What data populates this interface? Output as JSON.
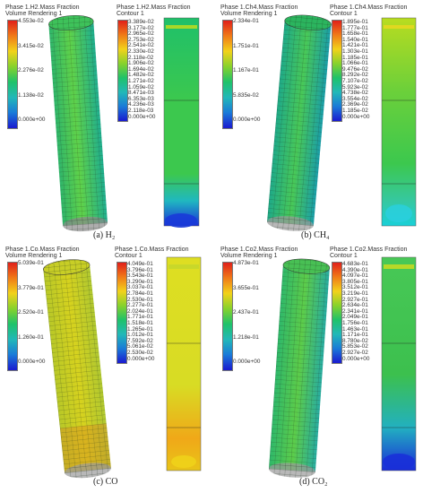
{
  "panels": [
    {
      "id": "h2",
      "vr_title": "Phase 1.H2.Mass Fraction",
      "vr_sub": "Volume Rendering 1",
      "vr_ticks": [
        "4.553e-02",
        "3.415e-02",
        "2.276e-02",
        "1.138e-02",
        "0.000e+00"
      ],
      "ct_title": "Phase 1.H2.Mass Fraction",
      "ct_sub": "Contour 1",
      "ct_ticks": [
        "3.389e-02",
        "3.177e-02",
        "2.965e-02",
        "2.753e-02",
        "2.541e-02",
        "2.330e-02",
        "2.118e-02",
        "1.906e-02",
        "1.694e-02",
        "1.482e-02",
        "1.271e-02",
        "1.059e-02",
        "8.471e-03",
        "6.353e-03",
        "4.236e-03",
        "2.118e-03",
        "0.000e+00"
      ],
      "caption": "(a) H₂"
    },
    {
      "id": "ch4",
      "vr_title": "Phase 1.Ch4.Mass Fraction",
      "vr_sub": "Volume Rendering 1",
      "vr_ticks": [
        "2.334e-01",
        "1.751e-01",
        "1.167e-01",
        "5.835e-02",
        "0.000e+00"
      ],
      "ct_title": "Phase 1.Ch4.Mass Fraction",
      "ct_sub": "Contour 1",
      "ct_ticks": [
        "1.895e-01",
        "1.777e-01",
        "1.658e-01",
        "1.540e-01",
        "1.421e-01",
        "1.303e-01",
        "1.185e-01",
        "1.066e-01",
        "9.476e-02",
        "8.292e-02",
        "7.107e-02",
        "5.923e-02",
        "4.738e-02",
        "3.554e-02",
        "2.369e-02",
        "1.185e-02",
        "0.000e+00"
      ],
      "caption": "(b) CH₄"
    },
    {
      "id": "co",
      "vr_title": "Phase 1.Co.Mass Fraction",
      "vr_sub": "Volume Rendering 1",
      "vr_ticks": [
        "5.039e-01",
        "3.779e-01",
        "2.520e-01",
        "1.260e-01",
        "0.000e+00"
      ],
      "ct_title": "Phase 1.Co.Mass Fraction",
      "ct_sub": "Contour 1",
      "ct_ticks": [
        "4.049e-01",
        "3.796e-01",
        "3.543e-01",
        "3.290e-01",
        "3.037e-01",
        "2.784e-01",
        "2.530e-01",
        "2.277e-01",
        "2.024e-01",
        "1.771e-01",
        "1.518e-01",
        "1.265e-01",
        "1.012e-01",
        "7.592e-02",
        "5.061e-02",
        "2.530e-02",
        "0.000e+00"
      ],
      "caption": "(c) CO"
    },
    {
      "id": "co2",
      "vr_title": "Phase 1.Co2.Mass Fraction",
      "vr_sub": "Volume Rendering 1",
      "vr_ticks": [
        "4.873e-01",
        "3.655e-01",
        "2.437e-01",
        "1.218e-01",
        "0.000e+00"
      ],
      "ct_title": "Phase 1.Co2.Mass Fraction",
      "ct_sub": "Contour 1",
      "ct_ticks": [
        "4.683e-01",
        "4.390e-01",
        "4.097e-01",
        "3.805e-01",
        "3.512e-01",
        "3.219e-01",
        "2.927e-01",
        "2.634e-01",
        "2.341e-01",
        "2.049e-01",
        "1.756e-01",
        "1.463e-01",
        "1.171e-01",
        "8.780e-02",
        "5.853e-02",
        "2.927e-02",
        "0.000e+00"
      ],
      "caption": "(d) CO₂"
    }
  ],
  "colors": {
    "scale": [
      "#e0201a",
      "#f07a18",
      "#f2d21a",
      "#86d22c",
      "#1fc26a",
      "#22b8b8",
      "#1a7ad8",
      "#1a1ad0"
    ]
  }
}
